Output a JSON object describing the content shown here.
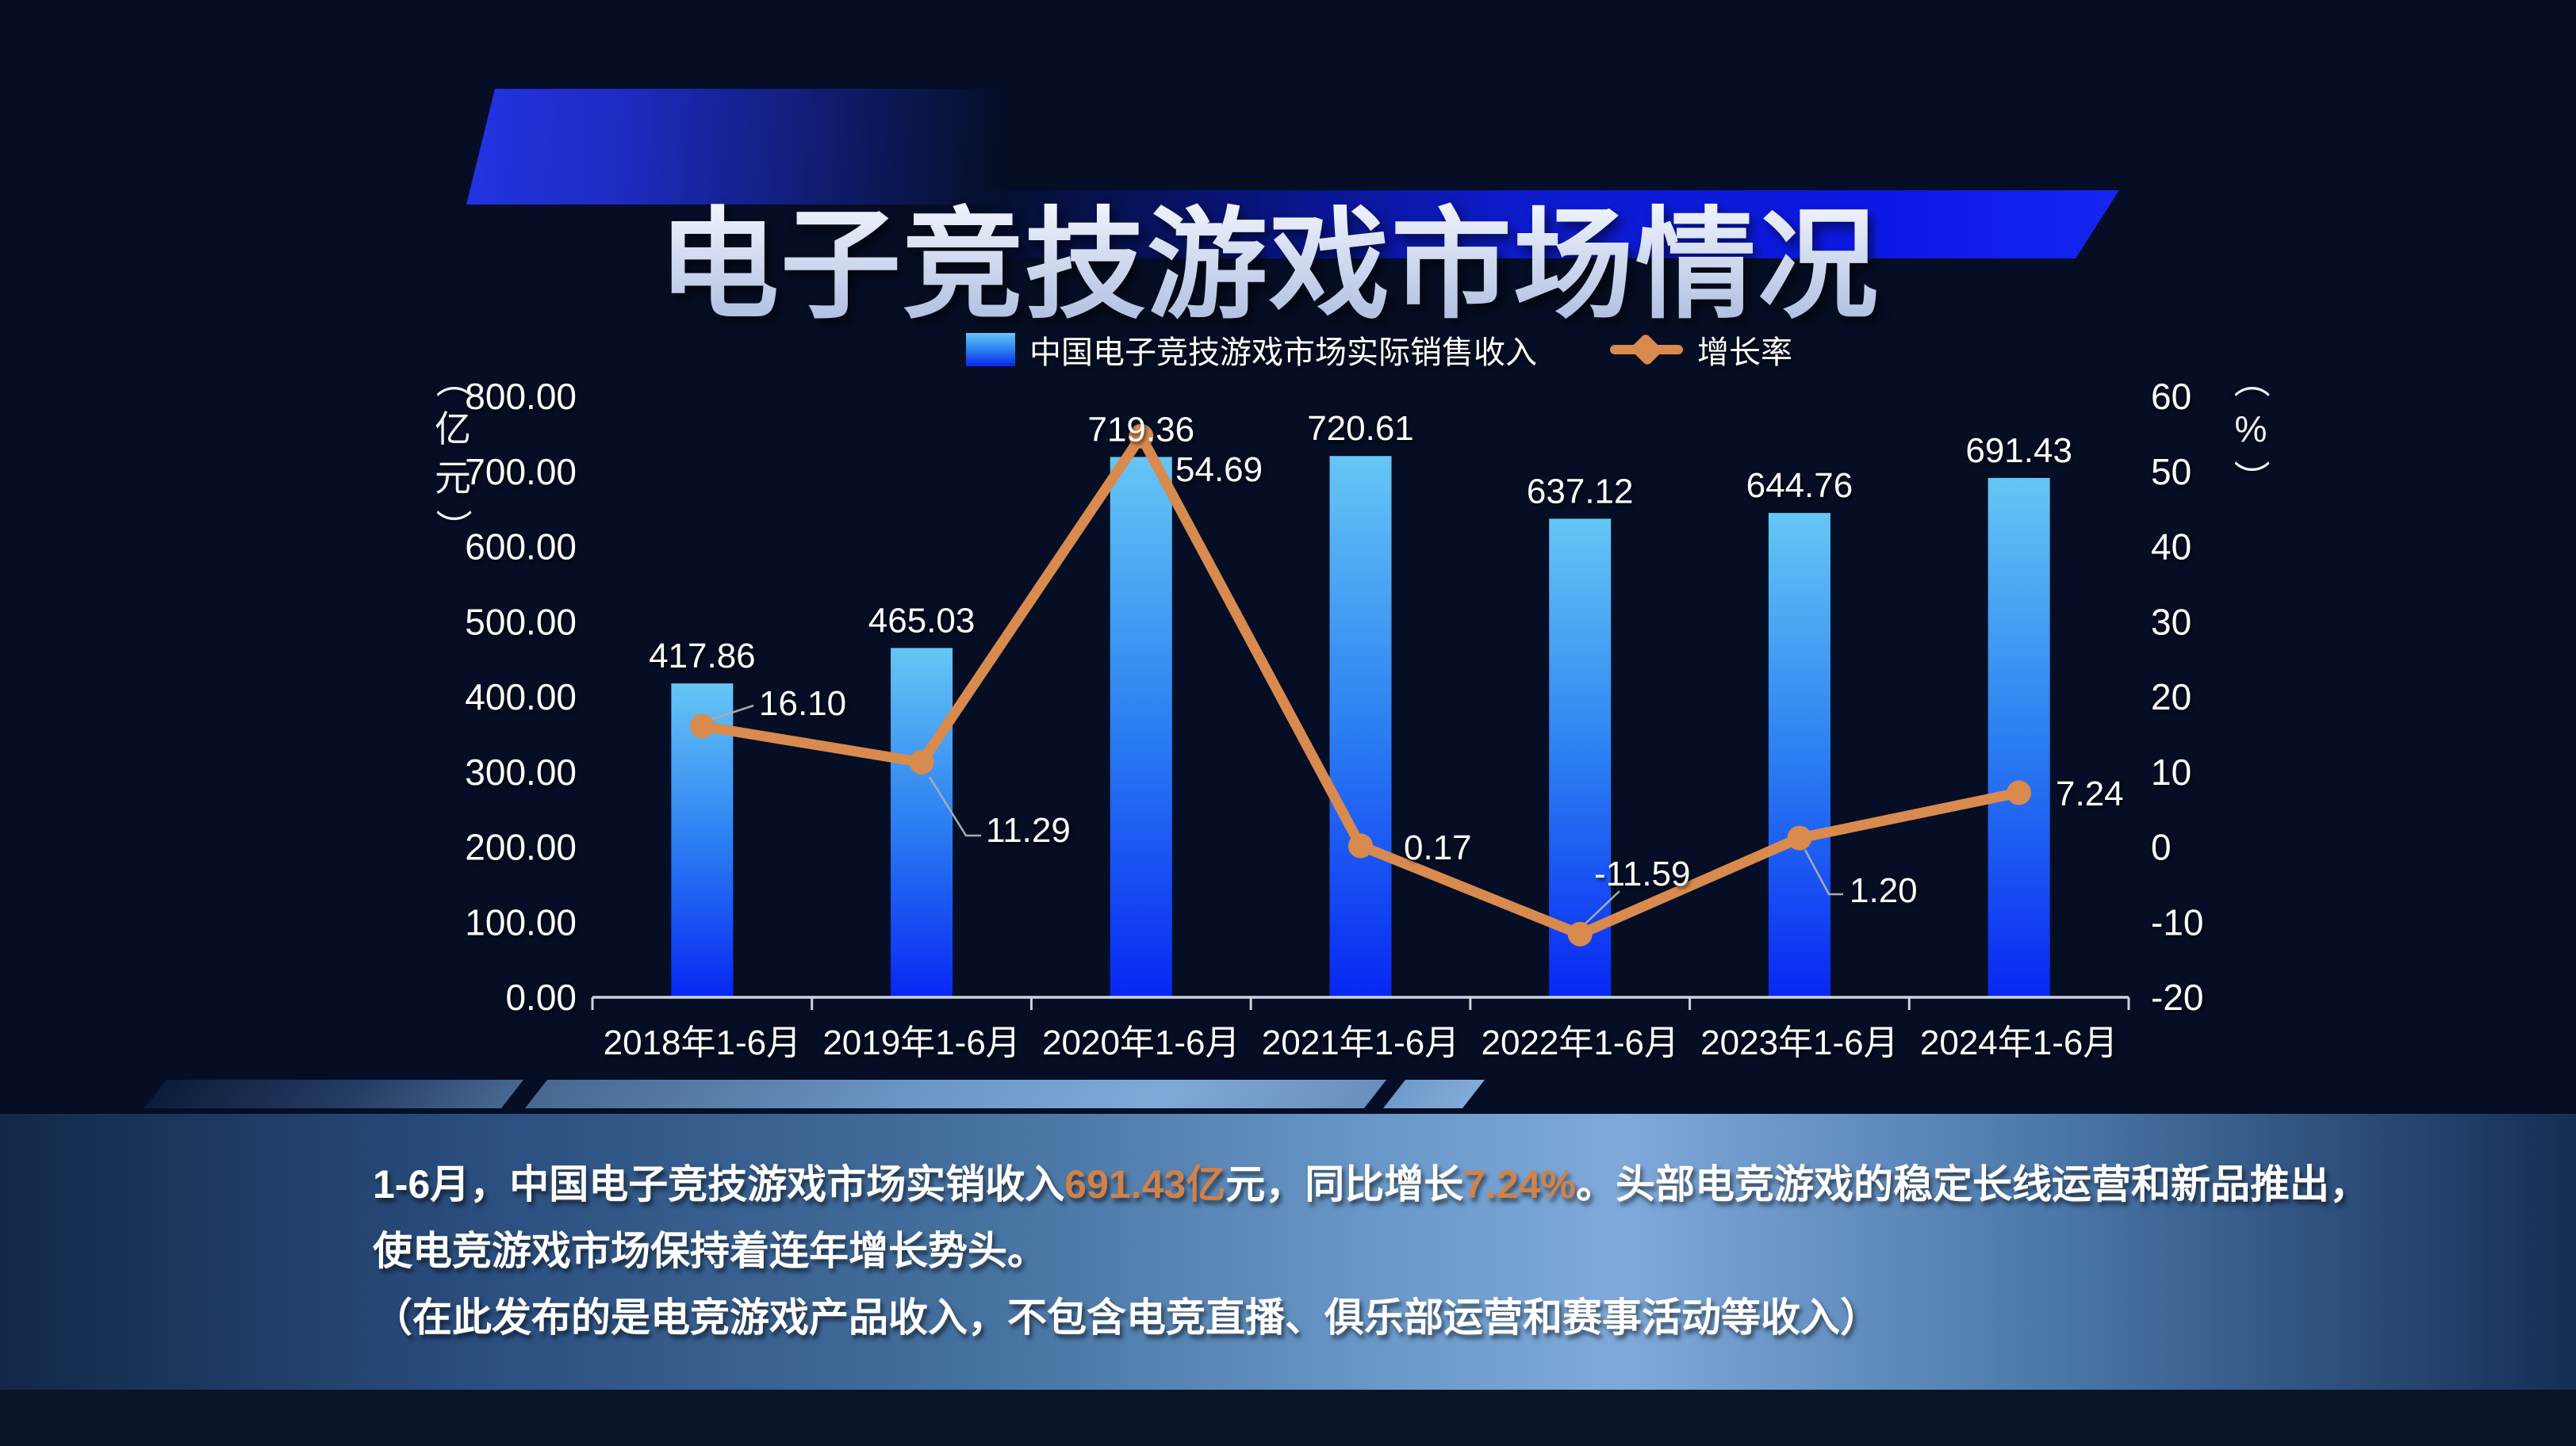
{
  "title": "电子竞技游戏市场情况",
  "legend": {
    "bar_label": "中国电子竞技游戏市场实际销售收入",
    "line_label": "增长率"
  },
  "chart_data": {
    "type": "bar+line",
    "title": "电子竞技游戏市场情况",
    "categories": [
      "2018年1-6月",
      "2019年1-6月",
      "2020年1-6月",
      "2021年1-6月",
      "2022年1-6月",
      "2023年1-6月",
      "2024年1-6月"
    ],
    "series": [
      {
        "name": "中国电子竞技游戏市场实际销售收入",
        "type": "bar",
        "axis": "left",
        "values": [
          417.86,
          465.03,
          719.36,
          720.61,
          637.12,
          644.76,
          691.43
        ]
      },
      {
        "name": "增长率",
        "type": "line",
        "axis": "right",
        "values": [
          16.1,
          11.29,
          54.69,
          0.17,
          -11.59,
          1.2,
          7.24
        ]
      }
    ],
    "left_axis": {
      "unit": "（亿元）",
      "min": 0,
      "max": 800,
      "ticks": [
        "0.00",
        "100.00",
        "200.00",
        "300.00",
        "400.00",
        "500.00",
        "600.00",
        "700.00",
        "800.00"
      ]
    },
    "right_axis": {
      "unit": "（%）",
      "min": -20,
      "max": 60,
      "ticks": [
        "-20",
        "-10",
        "0",
        "10",
        "20",
        "30",
        "40",
        "50",
        "60"
      ]
    },
    "grid": false,
    "legend_position": "top"
  },
  "colors": {
    "background": "#050e24",
    "bar_top": "#66c6f4",
    "bar_bottom": "#0827f2",
    "line": "#d98a4e",
    "accent_orange": "#d0824a",
    "banner_blue": "#1426f0",
    "panel_blue": "#6d9bcc",
    "axis": "#ced3db"
  },
  "summary": {
    "paragraphs": [
      {
        "runs": [
          {
            "t": "1-6月，中国电子竞技游戏市场实销收入",
            "c": "white"
          },
          {
            "t": "691.43亿",
            "c": "orange"
          },
          {
            "t": "元，同比增长",
            "c": "white"
          },
          {
            "t": "7.24%",
            "c": "orange"
          },
          {
            "t": "。头部电竞游戏的稳定长线运营和新品推出，使电竞游戏市场保持着连年增长势头。",
            "c": "white"
          }
        ]
      },
      {
        "runs": [
          {
            "t": "（在此发布的是电竞游戏产品收入，不包含电竞直播、俱乐部运营和赛事活动等收入）",
            "c": "white"
          }
        ]
      }
    ]
  }
}
